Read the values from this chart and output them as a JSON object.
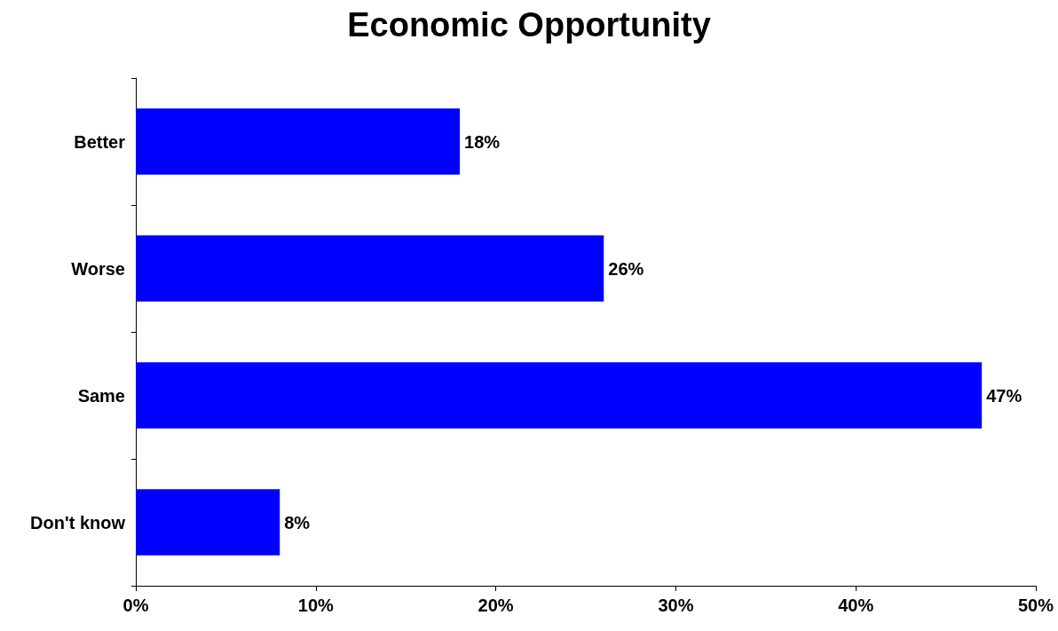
{
  "chart_data": {
    "type": "bar",
    "orientation": "horizontal",
    "title": "Economic Opportunity",
    "categories": [
      "Better",
      "Worse",
      "Same",
      "Don't know"
    ],
    "values": [
      18,
      26,
      47,
      8
    ],
    "value_labels": [
      "18%",
      "26%",
      "47%",
      "8%"
    ],
    "color": "#0000ff",
    "xlim": [
      0,
      50
    ],
    "xticks": [
      {
        "value": 0,
        "label": "0%"
      },
      {
        "value": 10,
        "label": "10%"
      },
      {
        "value": 20,
        "label": "20%"
      },
      {
        "value": 30,
        "label": "30%"
      },
      {
        "value": 40,
        "label": "40%"
      },
      {
        "value": 50,
        "label": "50%"
      }
    ],
    "grid": false
  }
}
